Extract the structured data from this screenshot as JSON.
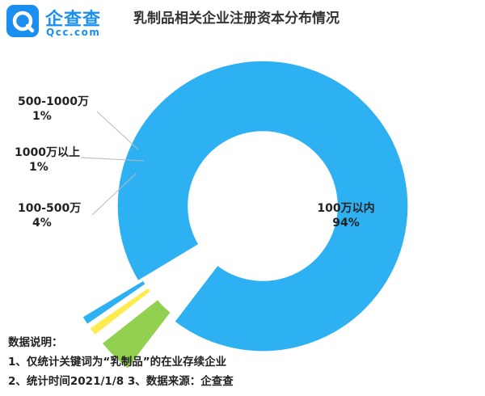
{
  "logo": {
    "name": "企查查",
    "domain": "Qcc.com",
    "icon": "qcc-logo-icon"
  },
  "title": "乳制品相关企业注册资本分布情况",
  "chart_data": {
    "type": "pie",
    "donut": true,
    "title": "乳制品相关企业注册资本分布情况",
    "slices": [
      {
        "label": "100万以内",
        "value": 94,
        "pct_label": "94%",
        "color": "#2eb1f2"
      },
      {
        "label": "100-500万",
        "value": 4,
        "pct_label": "4%",
        "color": "#92d050"
      },
      {
        "label": "1000万以上",
        "value": 1,
        "pct_label": "1%",
        "color": "#ffeb4d"
      },
      {
        "label": "500-1000万",
        "value": 1,
        "pct_label": "1%",
        "color": "#2eb1f2"
      }
    ]
  },
  "notes": {
    "heading": "数据说明：",
    "line1": "1、仅统计关键词为“乳制品”的在业存续企业",
    "line2": "2、统计时间2021/1/8  3、数据来源：企查查"
  }
}
